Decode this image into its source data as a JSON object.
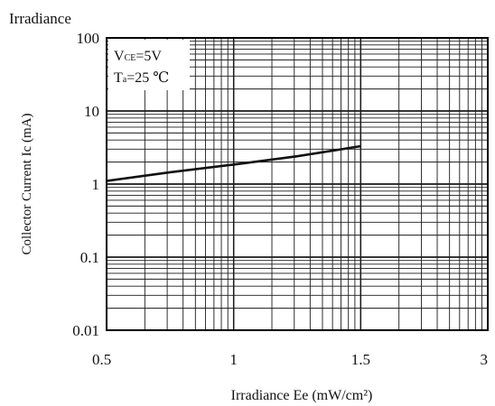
{
  "chart_data": {
    "type": "line",
    "title": "Irradiance",
    "xlabel": "Irradiance Ee (mW/cm²)",
    "ylabel": "Collector Current Ic (mA)",
    "x_ticks": [
      "0.5",
      "1",
      "1.5",
      "3"
    ],
    "y_ticks": [
      "100",
      "10",
      "1",
      "0.1",
      "0.01"
    ],
    "xlim": [
      0.5,
      3
    ],
    "ylim": [
      0.01,
      100
    ],
    "y_scale": "log",
    "grid": true,
    "legend": {
      "line1_prefix": "V",
      "line1_sub": "CE",
      "line1_suffix": "=5V",
      "line2_prefix": "T",
      "line2_sub": "a",
      "line2_suffix": "=25 ℃",
      "position": "top-left"
    },
    "series": [
      {
        "x": [
          0.5,
          0.75,
          1.0,
          1.25,
          1.5
        ],
        "y": [
          1.1,
          1.45,
          1.85,
          2.4,
          3.3
        ]
      }
    ]
  }
}
